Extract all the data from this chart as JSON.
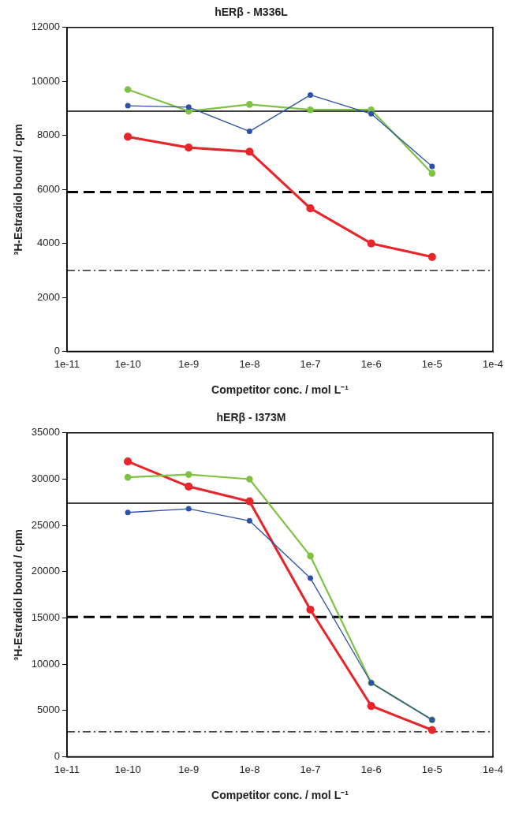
{
  "chart_data": [
    {
      "type": "line",
      "title": "hERβ - M336L",
      "xlabel": "Competitor conc. / mol L⁻¹",
      "ylabel": "³H-Estradiol bound / cpm",
      "log": "x",
      "marker": "circle",
      "line_style": "solid",
      "grid": false,
      "legend": false,
      "x": [
        1e-10,
        1e-09,
        1e-08,
        1e-07,
        1e-06,
        1e-05
      ],
      "xlim": [
        1e-11,
        0.0001
      ],
      "xticks": [
        {
          "value": 1e-11,
          "label": "1e-11"
        },
        {
          "value": 1e-10,
          "label": "1e-10"
        },
        {
          "value": 1e-09,
          "label": "1e-9"
        },
        {
          "value": 1e-08,
          "label": "1e-8"
        },
        {
          "value": 1e-07,
          "label": "1e-7"
        },
        {
          "value": 1e-06,
          "label": "1e-6"
        },
        {
          "value": 1e-05,
          "label": "1e-5"
        },
        {
          "value": 0.0001,
          "label": "1e-4"
        }
      ],
      "ylim": [
        0,
        12000
      ],
      "yticks": [
        0,
        2000,
        4000,
        6000,
        8000,
        10000,
        12000
      ],
      "series": [
        {
          "color": "#e8262a",
          "values": [
            7950,
            7550,
            7400,
            5300,
            4000,
            3500
          ]
        },
        {
          "color": "#7dc242",
          "values": [
            9700,
            8900,
            9150,
            8950,
            8950,
            6600
          ]
        },
        {
          "color": "#2d50a8",
          "values": [
            9100,
            9050,
            8150,
            9500,
            8800,
            6850
          ]
        }
      ],
      "ref_lines": [
        {
          "axis": "y",
          "value": 8900,
          "color": "#000000",
          "line_style": "solid"
        },
        {
          "axis": "y",
          "value": 5900,
          "color": "#000000",
          "line_style": "dashed"
        },
        {
          "axis": "y",
          "value": 3000,
          "color": "#000000",
          "line_style": "dashdot"
        }
      ]
    },
    {
      "type": "line",
      "title": "hERβ - I373M",
      "xlabel": "Competitor conc. / mol L⁻¹",
      "ylabel": "³H-Estradiol bound / cpm",
      "log": "x",
      "marker": "circle",
      "line_style": "solid",
      "grid": false,
      "legend": false,
      "x": [
        1e-10,
        1e-09,
        1e-08,
        1e-07,
        1e-06,
        1e-05
      ],
      "xlim": [
        1e-11,
        0.0001
      ],
      "xticks": [
        {
          "value": 1e-11,
          "label": "1e-11"
        },
        {
          "value": 1e-10,
          "label": "1e-10"
        },
        {
          "value": 1e-09,
          "label": "1e-9"
        },
        {
          "value": 1e-08,
          "label": "1e-8"
        },
        {
          "value": 1e-07,
          "label": "1e-7"
        },
        {
          "value": 1e-06,
          "label": "1e-6"
        },
        {
          "value": 1e-05,
          "label": "1e-5"
        },
        {
          "value": 0.0001,
          "label": "1e-4"
        }
      ],
      "ylim": [
        0,
        35000
      ],
      "yticks": [
        0,
        5000,
        10000,
        15000,
        20000,
        25000,
        30000,
        35000
      ],
      "series": [
        {
          "color": "#e8262a",
          "values": [
            31900,
            29200,
            27600,
            15900,
            5500,
            2900
          ]
        },
        {
          "color": "#7dc242",
          "values": [
            30200,
            30500,
            30000,
            21700,
            8000,
            4000
          ]
        },
        {
          "color": "#2d50a8",
          "values": [
            26400,
            26800,
            25500,
            19300,
            8000,
            4000
          ]
        }
      ],
      "ref_lines": [
        {
          "axis": "y",
          "value": 27400,
          "color": "#000000",
          "line_style": "solid"
        },
        {
          "axis": "y",
          "value": 15100,
          "color": "#000000",
          "line_style": "dashed"
        },
        {
          "axis": "y",
          "value": 2700,
          "color": "#000000",
          "line_style": "dashdot"
        }
      ]
    }
  ]
}
